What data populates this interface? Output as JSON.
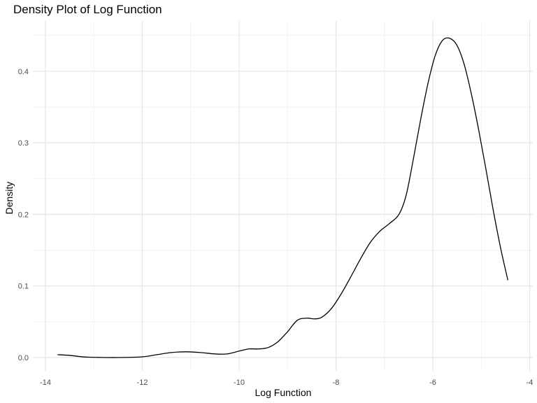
{
  "chart_data": {
    "type": "line",
    "title": "Density Plot of Log Function",
    "xlabel": "Log Function",
    "ylabel": "Density",
    "xlim": [
      -14,
      -4
    ],
    "ylim": [
      0,
      0.45
    ],
    "x_ticks": [
      -14,
      -12,
      -10,
      -8,
      -6,
      -4
    ],
    "y_ticks": [
      0.0,
      0.1,
      0.2,
      0.3,
      0.4
    ],
    "x_tick_labels": [
      "-14",
      "-12",
      "-10",
      "-8",
      "-6",
      "-4"
    ],
    "y_tick_labels": [
      "0.0",
      "0.1",
      "0.2",
      "0.3",
      "0.4"
    ],
    "grid": true,
    "series": [
      {
        "line_color": "#000000",
        "x": [
          -13.75,
          -13.5,
          -13.2,
          -12.9,
          -12.5,
          -12.0,
          -11.7,
          -11.4,
          -11.1,
          -10.8,
          -10.5,
          -10.25,
          -10.0,
          -9.8,
          -9.6,
          -9.4,
          -9.2,
          -9.0,
          -8.8,
          -8.6,
          -8.45,
          -8.3,
          -8.1,
          -7.9,
          -7.7,
          -7.5,
          -7.3,
          -7.1,
          -6.9,
          -6.7,
          -6.55,
          -6.4,
          -6.25,
          -6.1,
          -5.95,
          -5.8,
          -5.65,
          -5.5,
          -5.35,
          -5.2,
          -5.05,
          -4.9,
          -4.75,
          -4.6,
          -4.45
        ],
        "y": [
          0.004,
          0.003,
          0.0008,
          0.0002,
          0.0,
          0.001,
          0.004,
          0.007,
          0.008,
          0.007,
          0.005,
          0.005,
          0.009,
          0.012,
          0.012,
          0.014,
          0.022,
          0.036,
          0.052,
          0.055,
          0.054,
          0.056,
          0.068,
          0.088,
          0.112,
          0.137,
          0.16,
          0.176,
          0.187,
          0.2,
          0.227,
          0.278,
          0.333,
          0.383,
          0.422,
          0.443,
          0.446,
          0.436,
          0.409,
          0.367,
          0.317,
          0.262,
          0.205,
          0.153,
          0.108
        ]
      }
    ]
  }
}
